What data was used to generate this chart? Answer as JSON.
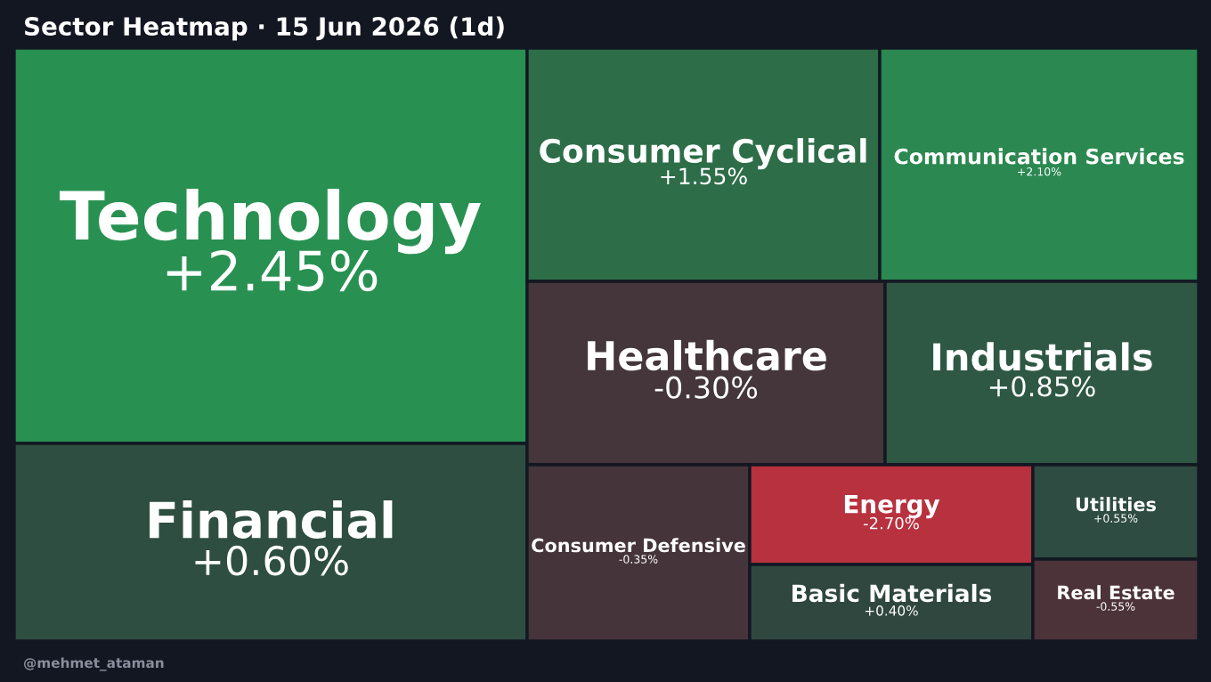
{
  "chart_data": {
    "type": "other",
    "title": "Sector Heatmap · 15 Jun 2026 (1d)",
    "categories": [
      "Technology",
      "Financial",
      "Consumer Cyclical",
      "Communication Services",
      "Healthcare",
      "Industrials",
      "Consumer Defensive",
      "Energy",
      "Basic Materials",
      "Utilities",
      "Real Estate"
    ],
    "value_labels": [
      "+2.45%",
      "+0.60%",
      "+1.55%",
      "+2.10%",
      "-0.30%",
      "+0.85%",
      "-0.35%",
      "-2.70%",
      "+0.40%",
      "+0.55%",
      "-0.55%"
    ],
    "values": [
      2.45,
      0.6,
      1.55,
      2.1,
      -0.3,
      0.85,
      -0.35,
      -2.7,
      0.4,
      0.55,
      -0.55
    ],
    "annotations": [
      "@mehmet_ataman"
    ]
  }
}
